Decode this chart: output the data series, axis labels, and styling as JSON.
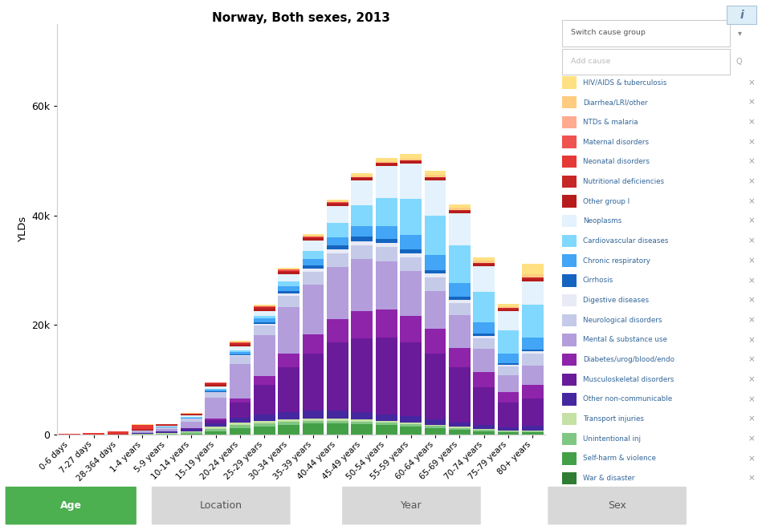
{
  "title": "Norway, Both sexes, 2013",
  "ylabel": "YLDs",
  "age_groups": [
    "0-6 days",
    "7-27 days",
    "28-364 days",
    "1-4 years",
    "5-9 years",
    "10-14 years",
    "15-19 years",
    "20-24 years",
    "25-29 years",
    "30-34 years",
    "35-39 years",
    "40-44 years",
    "45-49 years",
    "50-54 years",
    "55-59 years",
    "60-64 years",
    "65-69 years",
    "70-74 years",
    "75-79 years",
    "80+ years"
  ],
  "causes": [
    "War & disaster",
    "Self-harm & violence",
    "Unintentional inj",
    "Transport injuries",
    "Other non-communicable",
    "Musculoskeletal disorders",
    "Diabetes/urog/blood/endo",
    "Mental & substance use",
    "Neurological disorders",
    "Digestive diseases",
    "Cirrhosis",
    "Chronic respiratory",
    "Cardiovascular diseases",
    "Neoplasms",
    "Other group I",
    "Nutritional deficiencies",
    "Neonatal disorders",
    "Maternal disorders",
    "NTDs & malaria",
    "Diarrhea/LRI/other",
    "HIV/AIDS & tuberculosis"
  ],
  "colors": [
    "#2e7d32",
    "#43a047",
    "#81c784",
    "#c5e1a5",
    "#4527a0",
    "#6a1b9a",
    "#8e24aa",
    "#b39ddb",
    "#c5cae9",
    "#e8eaf6",
    "#1565c0",
    "#42a5f5",
    "#80d8ff",
    "#e3f2fd",
    "#b71c1c",
    "#c62828",
    "#e53935",
    "#ef5350",
    "#ffab91",
    "#ffcc80",
    "#ffe082"
  ],
  "data": {
    "War & disaster": [
      0,
      0,
      0,
      0,
      0,
      0,
      0,
      0,
      0,
      0,
      0,
      0,
      0,
      0,
      0,
      0,
      0,
      0,
      0,
      0
    ],
    "Self-harm & violence": [
      0,
      0,
      0,
      0,
      50,
      150,
      600,
      1200,
      1500,
      1800,
      2000,
      2000,
      1900,
      1700,
      1500,
      1200,
      900,
      600,
      400,
      400
    ],
    "Unintentional inj": [
      0,
      0,
      0,
      100,
      150,
      250,
      400,
      500,
      550,
      550,
      550,
      520,
      490,
      460,
      420,
      380,
      320,
      260,
      210,
      230
    ],
    "Transport injuries": [
      0,
      0,
      0,
      60,
      100,
      200,
      400,
      520,
      500,
      480,
      450,
      420,
      380,
      340,
      300,
      250,
      200,
      150,
      110,
      110
    ],
    "Other non-communicable": [
      0,
      0,
      0,
      120,
      240,
      380,
      600,
      850,
      1100,
      1250,
      1350,
      1400,
      1350,
      1200,
      1100,
      950,
      830,
      700,
      580,
      900
    ],
    "Musculoskeletal disorders": [
      0,
      0,
      0,
      0,
      0,
      150,
      700,
      2800,
      5500,
      8200,
      10500,
      12500,
      13500,
      14000,
      13500,
      12000,
      10000,
      7000,
      4500,
      5000
    ],
    "Diabetes/urog/blood/endo": [
      0,
      0,
      0,
      0,
      0,
      60,
      250,
      750,
      1500,
      2500,
      3500,
      4300,
      4900,
      5100,
      4900,
      4500,
      3600,
      2700,
      2000,
      2500
    ],
    "Mental & substance use": [
      0,
      0,
      0,
      250,
      500,
      1200,
      3800,
      6200,
      7500,
      8500,
      9000,
      9500,
      9500,
      8800,
      8200,
      7000,
      6000,
      4200,
      3000,
      3500
    ],
    "Neurological disorders": [
      0,
      0,
      0,
      150,
      300,
      550,
      1000,
      1500,
      1800,
      2100,
      2400,
      2500,
      2600,
      2600,
      2500,
      2400,
      2200,
      1900,
      1600,
      2200
    ],
    "Digestive diseases": [
      0,
      0,
      0,
      0,
      0,
      0,
      70,
      150,
      280,
      400,
      530,
      650,
      720,
      760,
      730,
      680,
      580,
      450,
      320,
      380
    ],
    "Cirrhosis": [
      0,
      0,
      0,
      0,
      0,
      0,
      60,
      200,
      320,
      450,
      580,
      700,
      780,
      780,
      740,
      670,
      570,
      440,
      300,
      330
    ],
    "Chronic respiratory": [
      0,
      0,
      0,
      60,
      130,
      200,
      330,
      470,
      650,
      900,
      1150,
      1500,
      1900,
      2300,
      2600,
      2700,
      2500,
      2100,
      1700,
      2200
    ],
    "Cardiovascular diseases": [
      0,
      0,
      0,
      0,
      0,
      60,
      130,
      260,
      520,
      900,
      1550,
      2600,
      3900,
      5200,
      6500,
      7200,
      6800,
      5600,
      4300,
      6000
    ],
    "Neoplasms": [
      0,
      0,
      0,
      60,
      130,
      260,
      390,
      650,
      900,
      1300,
      1900,
      3200,
      4500,
      5800,
      6500,
      6500,
      5900,
      4700,
      3500,
      4200
    ],
    "Other group I": [
      0,
      0,
      60,
      130,
      130,
      260,
      390,
      390,
      390,
      390,
      390,
      390,
      390,
      390,
      390,
      390,
      390,
      390,
      390,
      520
    ],
    "Nutritional deficiencies": [
      0,
      0,
      60,
      130,
      130,
      130,
      200,
      200,
      200,
      200,
      200,
      200,
      200,
      200,
      200,
      200,
      200,
      200,
      200,
      260
    ],
    "Neonatal disorders": [
      130,
      260,
      400,
      650,
      0,
      0,
      0,
      0,
      0,
      0,
      0,
      0,
      0,
      0,
      0,
      0,
      0,
      0,
      0,
      0
    ],
    "Maternal disorders": [
      0,
      0,
      0,
      0,
      0,
      0,
      130,
      260,
      260,
      200,
      130,
      65,
      40,
      25,
      12,
      0,
      0,
      0,
      0,
      0
    ],
    "NTDs & malaria": [
      0,
      0,
      0,
      0,
      0,
      0,
      0,
      0,
      0,
      0,
      0,
      0,
      0,
      0,
      0,
      0,
      0,
      0,
      0,
      0
    ],
    "Diarrhea/LRI/other": [
      0,
      0,
      130,
      130,
      65,
      65,
      65,
      65,
      65,
      65,
      100,
      130,
      200,
      260,
      320,
      390,
      450,
      450,
      390,
      520
    ],
    "HIV/AIDS & tuberculosis": [
      0,
      0,
      0,
      0,
      0,
      0,
      60,
      130,
      200,
      260,
      320,
      390,
      520,
      650,
      780,
      780,
      650,
      520,
      390,
      2000
    ]
  },
  "yticks": [
    0,
    20000,
    40000,
    60000
  ],
  "ytick_labels": [
    "0",
    "20k",
    "40k",
    "60k"
  ],
  "ylim_max": 75000,
  "background_color": "#ffffff",
  "legend_bg": "#f0f0f0",
  "footer_tabs": [
    "Age",
    "Location",
    "Year",
    "Sex"
  ],
  "active_tab": "Age",
  "active_tab_color": "#4caf50",
  "inactive_tab_color": "#d8d8d8"
}
